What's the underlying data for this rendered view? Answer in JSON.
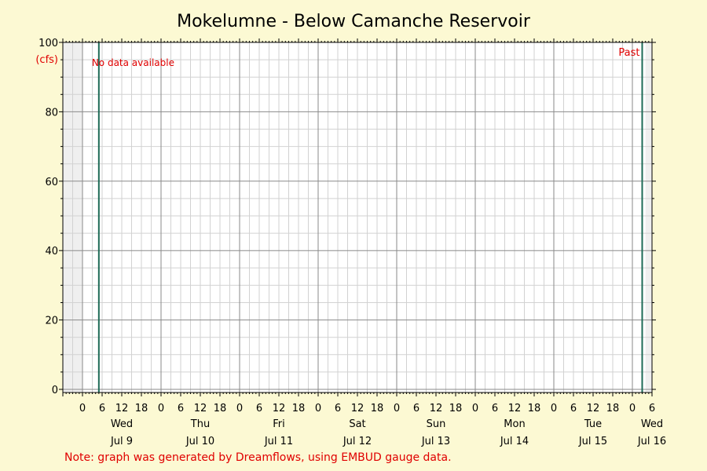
{
  "chart_data": {
    "type": "line",
    "title": "Mokelumne - Below Camanche Reservoir",
    "ylabel": "(cfs)",
    "ylim": [
      0,
      100
    ],
    "yticks": [
      0,
      20,
      40,
      60,
      80,
      100
    ],
    "x_hour_ticks": [
      "0",
      "6",
      "12",
      "18"
    ],
    "x_days": [
      {
        "weekday": "Wed",
        "date": "Jul 9"
      },
      {
        "weekday": "Thu",
        "date": "Jul 10"
      },
      {
        "weekday": "Fri",
        "date": "Jul 11"
      },
      {
        "weekday": "Sat",
        "date": "Jul 12"
      },
      {
        "weekday": "Sun",
        "date": "Jul 13"
      },
      {
        "weekday": "Mon",
        "date": "Jul 14"
      },
      {
        "weekday": "Tue",
        "date": "Jul 15"
      },
      {
        "weekday": "Wed",
        "date": "Jul 16"
      }
    ],
    "x_range_hours_from_first_midnight": [
      -6,
      174
    ],
    "past_marker_hour": 168,
    "no_data_marker_hour": 5,
    "series": [],
    "annotations": {
      "no_data": "No data available",
      "past": "Past"
    },
    "grid": true
  },
  "note": "Note: graph was generated by Dreamflows, using EMBUD gauge data.",
  "colors": {
    "background": "#fcf9d3",
    "plot": "#ffffff",
    "shaded": "#efefef",
    "marker": "#1e6b57",
    "annotation": "#e00000"
  }
}
